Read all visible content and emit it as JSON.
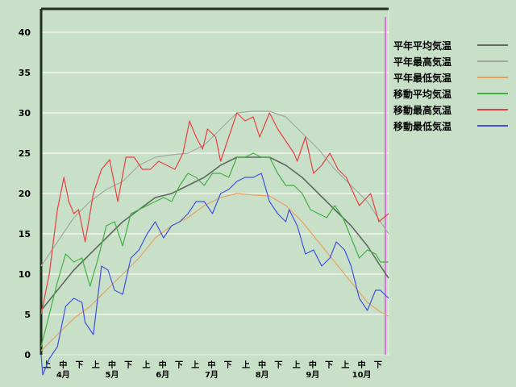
{
  "chart_data": {
    "type": "line",
    "x_range": [
      "04-01",
      "10-31"
    ],
    "ylim": [
      0,
      40
    ],
    "yticks": [
      0,
      5,
      10,
      15,
      20,
      25,
      30,
      35,
      40
    ],
    "grid": true,
    "legend_placement": "right",
    "dekad_labels": [
      "上",
      "中",
      "下"
    ],
    "month_labels": [
      "4月",
      "5月",
      "6月",
      "7月",
      "8月",
      "9月",
      "10月"
    ],
    "marker_date": "10-29",
    "marker_color": "#e070e0",
    "series": [
      {
        "name": "平年平均気温",
        "color": "#5e6a5e",
        "points": [
          [
            "04-01",
            5.5
          ],
          [
            "04-11",
            8
          ],
          [
            "04-21",
            10.5
          ],
          [
            "05-01",
            12.5
          ],
          [
            "05-11",
            14.5
          ],
          [
            "05-21",
            16.5
          ],
          [
            "05-31",
            18
          ],
          [
            "06-10",
            19.5
          ],
          [
            "06-20",
            20
          ],
          [
            "06-30",
            21
          ],
          [
            "07-10",
            22
          ],
          [
            "07-20",
            23.5
          ],
          [
            "07-30",
            24.5
          ],
          [
            "08-09",
            24.5
          ],
          [
            "08-19",
            24.5
          ],
          [
            "08-29",
            23.5
          ],
          [
            "09-08",
            22
          ],
          [
            "09-18",
            20
          ],
          [
            "09-28",
            18
          ],
          [
            "10-08",
            16
          ],
          [
            "10-18",
            13.5
          ],
          [
            "10-26",
            11
          ],
          [
            "10-31",
            9.5
          ]
        ]
      },
      {
        "name": "平年最高気温",
        "color": "#a0aaa0",
        "points": [
          [
            "04-01",
            11
          ],
          [
            "04-11",
            14
          ],
          [
            "04-21",
            17
          ],
          [
            "05-01",
            19
          ],
          [
            "05-11",
            20.5
          ],
          [
            "05-21",
            21.5
          ],
          [
            "05-31",
            23.5
          ],
          [
            "06-10",
            24.5
          ],
          [
            "06-20",
            24.8
          ],
          [
            "06-30",
            25
          ],
          [
            "07-10",
            26
          ],
          [
            "07-20",
            28
          ],
          [
            "07-30",
            30
          ],
          [
            "08-09",
            30.2
          ],
          [
            "08-19",
            30.2
          ],
          [
            "08-29",
            29.5
          ],
          [
            "09-08",
            27.5
          ],
          [
            "09-18",
            25.5
          ],
          [
            "09-28",
            23
          ],
          [
            "10-08",
            21
          ],
          [
            "10-18",
            19
          ],
          [
            "10-26",
            16.5
          ],
          [
            "10-31",
            15
          ]
        ]
      },
      {
        "name": "平年最低気温",
        "color": "#e8a060",
        "points": [
          [
            "04-01",
            0.5
          ],
          [
            "04-11",
            2.5
          ],
          [
            "04-21",
            4.5
          ],
          [
            "05-01",
            6
          ],
          [
            "05-11",
            8
          ],
          [
            "05-21",
            10
          ],
          [
            "05-31",
            12
          ],
          [
            "06-10",
            14.5
          ],
          [
            "06-20",
            16
          ],
          [
            "06-30",
            17
          ],
          [
            "07-10",
            18.5
          ],
          [
            "07-20",
            19.5
          ],
          [
            "07-30",
            20
          ],
          [
            "08-09",
            19.8
          ],
          [
            "08-19",
            19.7
          ],
          [
            "08-29",
            18.5
          ],
          [
            "09-08",
            16.5
          ],
          [
            "09-18",
            14
          ],
          [
            "09-28",
            11.5
          ],
          [
            "10-08",
            9
          ],
          [
            "10-18",
            6.5
          ],
          [
            "10-26",
            5.3
          ],
          [
            "10-31",
            4.8
          ]
        ]
      },
      {
        "name": "移動平均気温",
        "color": "#40b040",
        "points": [
          [
            "04-01",
            1
          ],
          [
            "04-06",
            5
          ],
          [
            "04-11",
            9
          ],
          [
            "04-16",
            12.5
          ],
          [
            "04-21",
            11.5
          ],
          [
            "04-26",
            12
          ],
          [
            "05-01",
            8.5
          ],
          [
            "05-06",
            12
          ],
          [
            "05-11",
            16
          ],
          [
            "05-16",
            16.5
          ],
          [
            "05-21",
            13.5
          ],
          [
            "05-26",
            17.5
          ],
          [
            "05-31",
            18
          ],
          [
            "06-05",
            18.5
          ],
          [
            "06-10",
            19
          ],
          [
            "06-15",
            19.5
          ],
          [
            "06-20",
            19
          ],
          [
            "06-25",
            21
          ],
          [
            "06-30",
            22.5
          ],
          [
            "07-05",
            22
          ],
          [
            "07-10",
            21
          ],
          [
            "07-15",
            22.5
          ],
          [
            "07-20",
            22.5
          ],
          [
            "07-25",
            22
          ],
          [
            "07-30",
            24.5
          ],
          [
            "08-04",
            24.5
          ],
          [
            "08-09",
            25
          ],
          [
            "08-14",
            24.5
          ],
          [
            "08-19",
            24.5
          ],
          [
            "08-24",
            22.5
          ],
          [
            "08-29",
            21
          ],
          [
            "09-03",
            21
          ],
          [
            "09-08",
            20
          ],
          [
            "09-13",
            18
          ],
          [
            "09-18",
            17.5
          ],
          [
            "09-23",
            17
          ],
          [
            "09-28",
            18.5
          ],
          [
            "10-03",
            17
          ],
          [
            "10-08",
            14.5
          ],
          [
            "10-13",
            12
          ],
          [
            "10-18",
            13
          ],
          [
            "10-23",
            12.5
          ],
          [
            "10-26",
            11.5
          ],
          [
            "10-31",
            11.5
          ]
        ]
      },
      {
        "name": "移動最高気温",
        "color": "#e84040",
        "points": [
          [
            "04-01",
            5
          ],
          [
            "04-06",
            10
          ],
          [
            "04-11",
            18
          ],
          [
            "04-15",
            22
          ],
          [
            "04-18",
            19
          ],
          [
            "04-21",
            17.5
          ],
          [
            "04-24",
            18
          ],
          [
            "04-28",
            14
          ],
          [
            "05-03",
            20
          ],
          [
            "05-08",
            23
          ],
          [
            "05-13",
            24.2
          ],
          [
            "05-18",
            19
          ],
          [
            "05-23",
            24.5
          ],
          [
            "05-28",
            24.5
          ],
          [
            "06-02",
            23
          ],
          [
            "06-07",
            23
          ],
          [
            "06-12",
            24
          ],
          [
            "06-17",
            23.5
          ],
          [
            "06-22",
            23
          ],
          [
            "06-27",
            25
          ],
          [
            "07-01",
            29
          ],
          [
            "07-05",
            27
          ],
          [
            "07-09",
            25.5
          ],
          [
            "07-12",
            28
          ],
          [
            "07-17",
            27
          ],
          [
            "07-20",
            24
          ],
          [
            "07-25",
            27
          ],
          [
            "07-30",
            30
          ],
          [
            "08-04",
            29
          ],
          [
            "08-09",
            29.5
          ],
          [
            "08-13",
            27
          ],
          [
            "08-19",
            30
          ],
          [
            "08-24",
            28
          ],
          [
            "08-29",
            26.5
          ],
          [
            "09-03",
            25
          ],
          [
            "09-05",
            24
          ],
          [
            "09-10",
            27
          ],
          [
            "09-15",
            22.5
          ],
          [
            "09-20",
            23.5
          ],
          [
            "09-25",
            25
          ],
          [
            "09-30",
            23
          ],
          [
            "10-05",
            22
          ],
          [
            "10-13",
            18.5
          ],
          [
            "10-20",
            20
          ],
          [
            "10-25",
            16.5
          ],
          [
            "10-31",
            17.5
          ]
        ]
      },
      {
        "name": "移動最低気温",
        "color": "#4050e0",
        "points": [
          [
            "04-01",
            0
          ],
          [
            "04-02",
            -2.5
          ],
          [
            "04-06",
            -0.5
          ],
          [
            "04-11",
            1
          ],
          [
            "04-16",
            6
          ],
          [
            "04-21",
            7
          ],
          [
            "04-26",
            6.5
          ],
          [
            "04-28",
            4
          ],
          [
            "05-03",
            2.5
          ],
          [
            "05-08",
            11
          ],
          [
            "05-12",
            10.5
          ],
          [
            "05-16",
            8
          ],
          [
            "05-21",
            7.5
          ],
          [
            "05-26",
            12
          ],
          [
            "05-31",
            13
          ],
          [
            "06-05",
            15
          ],
          [
            "06-10",
            16.5
          ],
          [
            "06-15",
            14.5
          ],
          [
            "06-20",
            16
          ],
          [
            "06-25",
            16.5
          ],
          [
            "06-30",
            17.5
          ],
          [
            "07-05",
            19
          ],
          [
            "07-10",
            19
          ],
          [
            "07-15",
            17.5
          ],
          [
            "07-20",
            20
          ],
          [
            "07-25",
            20.5
          ],
          [
            "07-30",
            21.5
          ],
          [
            "08-04",
            22
          ],
          [
            "08-09",
            22
          ],
          [
            "08-14",
            22.5
          ],
          [
            "08-19",
            19
          ],
          [
            "08-24",
            17.5
          ],
          [
            "08-29",
            16.5
          ],
          [
            "08-31",
            18
          ],
          [
            "09-05",
            16
          ],
          [
            "09-10",
            12.5
          ],
          [
            "09-15",
            13
          ],
          [
            "09-20",
            11
          ],
          [
            "09-25",
            12
          ],
          [
            "09-29",
            14
          ],
          [
            "10-04",
            13
          ],
          [
            "10-08",
            11
          ],
          [
            "10-13",
            7
          ],
          [
            "10-18",
            5.5
          ],
          [
            "10-23",
            8
          ],
          [
            "10-26",
            8
          ],
          [
            "10-31",
            7
          ]
        ]
      }
    ]
  }
}
